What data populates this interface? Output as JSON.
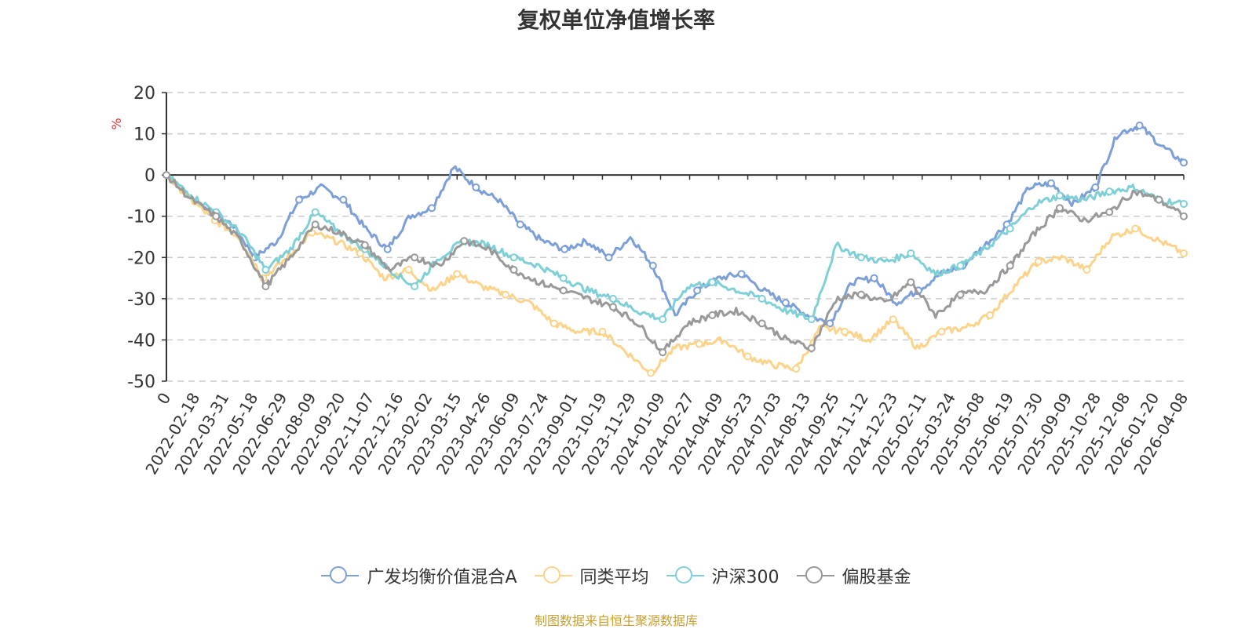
{
  "chart_data": {
    "type": "line",
    "title": "复权单位净值增长率",
    "ylabel": "%",
    "xlabel": "",
    "ylim": [
      -50,
      20
    ],
    "yticks": [
      20,
      10,
      0,
      -10,
      -20,
      -30,
      -40,
      -50
    ],
    "x_tick_labels": [
      "0",
      "2022-02-18",
      "2022-03-31",
      "2022-05-18",
      "2022-06-29",
      "2022-08-09",
      "2022-09-20",
      "2022-11-07",
      "2022-12-16",
      "2023-02-02",
      "2023-03-15",
      "2023-04-26",
      "2023-06-09",
      "2023-07-24",
      "2023-09-01",
      "2023-10-19",
      "2023-11-29",
      "2024-01-09",
      "2024-02-27",
      "2024-04-09",
      "2024-05-23",
      "2024-07-03",
      "2024-08-13",
      "2024-09-25",
      "2024-11-12",
      "2024-12-23",
      "2025-02-11",
      "2025-03-24",
      "2025-05-08",
      "2025-06-19",
      "2025-07-30",
      "2025-09-09",
      "2025-10-28",
      "2025-12-08",
      "2026-01-20",
      "2026-04-08"
    ],
    "grid": true,
    "legend": "bottom-center",
    "source_note": "制图数据来自恒生聚源数据库",
    "series": [
      {
        "name": "广发均衡价值混合A",
        "color": "#7b9fd6",
        "values": [
          0,
          -5,
          -9,
          -12,
          -20,
          -16,
          -6,
          -3,
          -6,
          -13,
          -18,
          -10,
          -8,
          2,
          -3,
          -6,
          -12,
          -16,
          -18,
          -16,
          -20,
          -15,
          -22,
          -34,
          -28,
          -25,
          -24,
          -28,
          -31,
          -34,
          -36,
          -26,
          -25,
          -31,
          -28,
          -24,
          -22,
          -17,
          -12,
          -3,
          -2,
          -7,
          -3,
          10,
          12,
          7,
          3
        ]
      },
      {
        "name": "同类平均",
        "color": "#fcd38a",
        "values": [
          0,
          -6,
          -11,
          -15,
          -25,
          -20,
          -14,
          -16,
          -19,
          -25,
          -23,
          -28,
          -24,
          -27,
          -29,
          -31,
          -36,
          -38,
          -38,
          -43,
          -48,
          -42,
          -41,
          -40,
          -44,
          -46,
          -47,
          -37,
          -38,
          -40,
          -35,
          -42,
          -38,
          -37,
          -34,
          -27,
          -21,
          -20,
          -23,
          -15,
          -13,
          -16,
          -19
        ]
      },
      {
        "name": "沪深300",
        "color": "#7ed0d6",
        "values": [
          0,
          -5,
          -9,
          -14,
          -23,
          -18,
          -9,
          -14,
          -18,
          -23,
          -27,
          -20,
          -16,
          -17,
          -20,
          -22,
          -25,
          -28,
          -30,
          -33,
          -35,
          -27,
          -26,
          -28,
          -30,
          -33,
          -35,
          -17,
          -20,
          -21,
          -19,
          -24,
          -22,
          -18,
          -13,
          -7,
          -5,
          -6,
          -4,
          -3,
          -6,
          -7
        ]
      },
      {
        "name": "偏股基金",
        "color": "#999999",
        "values": [
          0,
          -6,
          -10,
          -16,
          -27,
          -20,
          -12,
          -14,
          -17,
          -23,
          -20,
          -22,
          -16,
          -18,
          -23,
          -26,
          -28,
          -30,
          -32,
          -36,
          -43,
          -36,
          -34,
          -33,
          -36,
          -40,
          -42,
          -30,
          -29,
          -31,
          -26,
          -34,
          -29,
          -28,
          -22,
          -14,
          -8,
          -11,
          -9,
          -4,
          -6,
          -10
        ]
      }
    ]
  }
}
